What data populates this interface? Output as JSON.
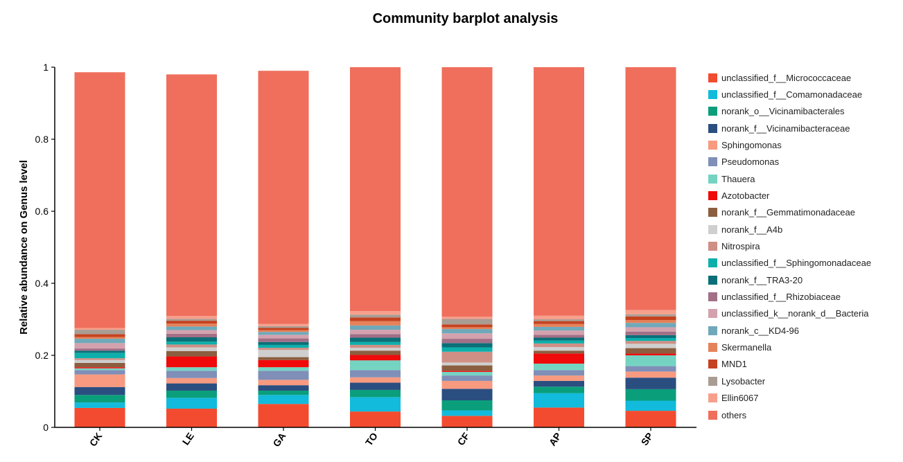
{
  "chart_data": {
    "type": "bar",
    "stacked": true,
    "title": "Community barplot analysis",
    "ylabel": "Relative abundance on Genus level",
    "xlabel": "",
    "ylim": [
      0,
      1
    ],
    "yticks": [
      0,
      0.2,
      0.4,
      0.6,
      0.8,
      1
    ],
    "ytick_labels": [
      "0",
      "0.2",
      "0.4",
      "0.6",
      "0.8",
      "1"
    ],
    "legend_position": "right",
    "categories": [
      "CK",
      "LE",
      "GA",
      "TO",
      "CF",
      "AP",
      "SP"
    ],
    "series": [
      {
        "name": "unclassified_f__Micrococcaceae",
        "color": "#F34B2F",
        "values": [
          0.054,
          0.052,
          0.065,
          0.044,
          0.032,
          0.055,
          0.046
        ]
      },
      {
        "name": "unclassified_f__Comamonadaceae",
        "color": "#12BADB",
        "values": [
          0.015,
          0.03,
          0.025,
          0.04,
          0.015,
          0.04,
          0.028
        ]
      },
      {
        "name": "norank_o__Vicinamibacterales",
        "color": "#0A9E7B",
        "values": [
          0.021,
          0.02,
          0.012,
          0.02,
          0.028,
          0.018,
          0.032
        ]
      },
      {
        "name": "norank_f__Vicinamibacteraceae",
        "color": "#2B4E80",
        "values": [
          0.022,
          0.02,
          0.015,
          0.02,
          0.032,
          0.016,
          0.032
        ]
      },
      {
        "name": "Sphingomonas",
        "color": "#F79A80",
        "values": [
          0.035,
          0.015,
          0.015,
          0.015,
          0.022,
          0.015,
          0.017
        ]
      },
      {
        "name": "Pseudomonas",
        "color": "#7F8FB8",
        "values": [
          0.012,
          0.02,
          0.025,
          0.02,
          0.015,
          0.015,
          0.015
        ]
      },
      {
        "name": "Thauera",
        "color": "#75D3C2",
        "values": [
          0.005,
          0.01,
          0.01,
          0.027,
          0.01,
          0.018,
          0.03
        ]
      },
      {
        "name": "Azotobacter",
        "color": "#F00A0A",
        "values": [
          0.003,
          0.03,
          0.02,
          0.015,
          0.003,
          0.028,
          0.005
        ]
      },
      {
        "name": "norank_f__Gemmatimonadaceae",
        "color": "#8B5E40",
        "values": [
          0.012,
          0.015,
          0.008,
          0.012,
          0.015,
          0.008,
          0.015
        ]
      },
      {
        "name": "norank_f__A4b",
        "color": "#CFCFCF",
        "values": [
          0.008,
          0.01,
          0.02,
          0.008,
          0.008,
          0.01,
          0.012
        ]
      },
      {
        "name": "Nitrospira",
        "color": "#CF8F85",
        "values": [
          0.005,
          0.008,
          0.006,
          0.008,
          0.03,
          0.01,
          0.008
        ]
      },
      {
        "name": "unclassified_f__Sphingomonadaceae",
        "color": "#0DAFAB",
        "values": [
          0.015,
          0.008,
          0.008,
          0.008,
          0.012,
          0.008,
          0.008
        ]
      },
      {
        "name": "norank_f__TRA3-20",
        "color": "#0A6F78",
        "values": [
          0.006,
          0.012,
          0.008,
          0.012,
          0.012,
          0.008,
          0.008
        ]
      },
      {
        "name": "unclassified_f__Rhizobiaceae",
        "color": "#A26F87",
        "values": [
          0.006,
          0.01,
          0.01,
          0.01,
          0.012,
          0.008,
          0.01
        ]
      },
      {
        "name": "unclassified_k__norank_d__Bacteria",
        "color": "#D3A2AE",
        "values": [
          0.015,
          0.01,
          0.01,
          0.012,
          0.015,
          0.012,
          0.012
        ]
      },
      {
        "name": "norank_c__KD4-96",
        "color": "#6FA9B9",
        "values": [
          0.012,
          0.01,
          0.008,
          0.012,
          0.012,
          0.01,
          0.012
        ]
      },
      {
        "name": "Skermanella",
        "color": "#E5825A",
        "values": [
          0.005,
          0.008,
          0.005,
          0.012,
          0.005,
          0.008,
          0.008
        ]
      },
      {
        "name": "MND1",
        "color": "#C5421F",
        "values": [
          0.008,
          0.008,
          0.006,
          0.01,
          0.008,
          0.008,
          0.01
        ]
      },
      {
        "name": "Lysobacter",
        "color": "#A99C93",
        "values": [
          0.012,
          0.005,
          0.005,
          0.008,
          0.015,
          0.005,
          0.006
        ]
      },
      {
        "name": "Ellin6067",
        "color": "#F6A08C",
        "values": [
          0.005,
          0.008,
          0.006,
          0.01,
          0.006,
          0.01,
          0.012
        ]
      },
      {
        "name": "others",
        "color": "#EF6F5C",
        "values": [
          0.71,
          0.671,
          0.703,
          0.677,
          0.694,
          0.69,
          0.674
        ]
      }
    ]
  }
}
